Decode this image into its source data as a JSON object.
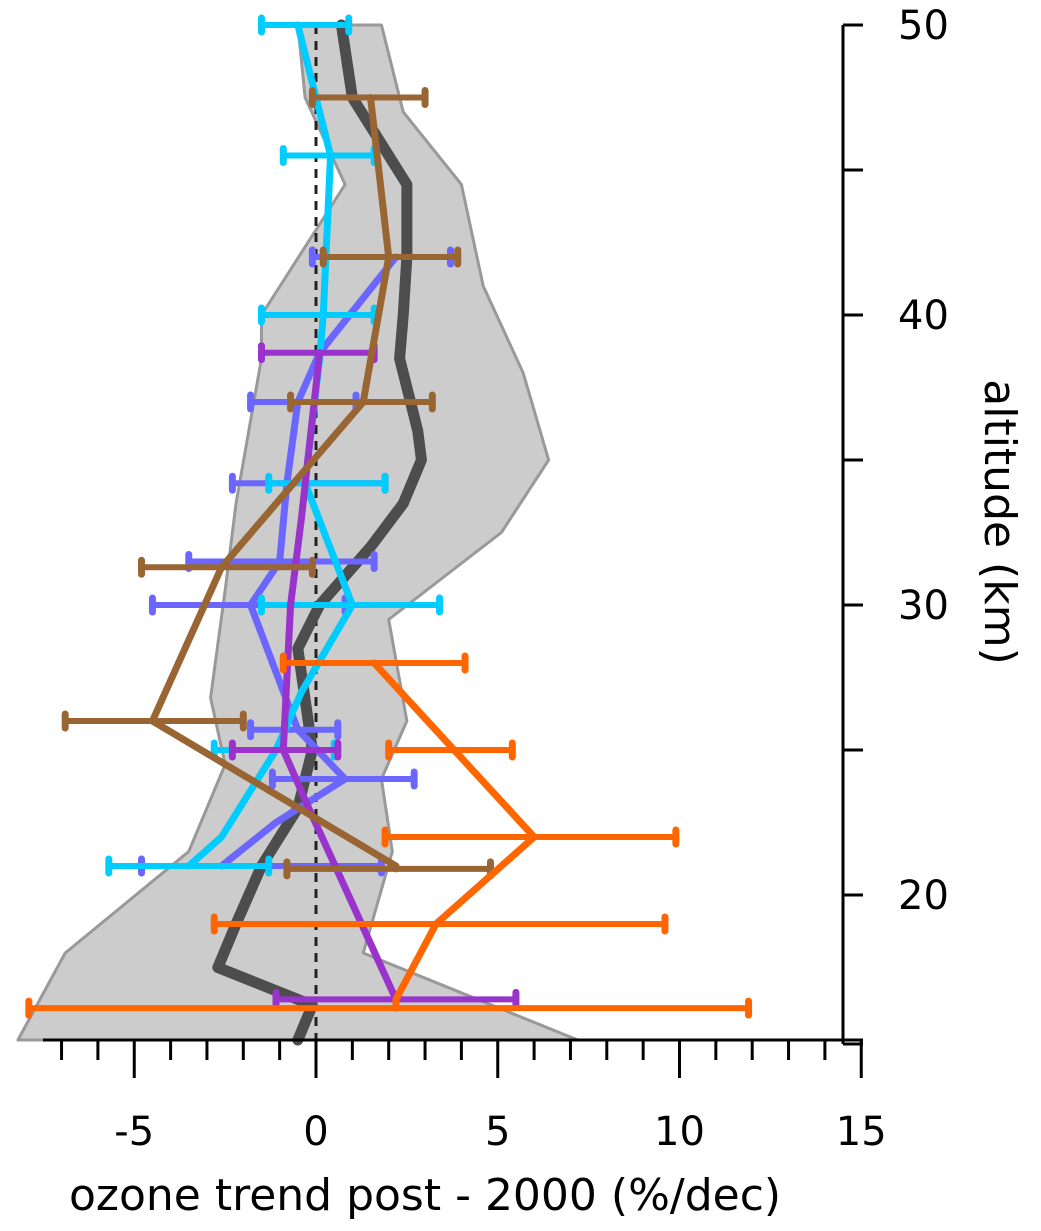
{
  "chart_data": {
    "type": "line",
    "xlabel": "ozone trend post - 2000 (%/dec)",
    "ylabel": "altitude (km)",
    "xlim": [
      -7.5,
      15
    ],
    "ylim": [
      15,
      50
    ],
    "x_ticks": [
      {
        "value": -5,
        "label": "-5"
      },
      {
        "value": 0,
        "label": "0"
      },
      {
        "value": 5,
        "label": "5"
      },
      {
        "value": 10,
        "label": "10"
      },
      {
        "value": 15,
        "label": "15"
      }
    ],
    "x_minor_step": 1,
    "y_ticks": [
      {
        "value": 20,
        "label": "20"
      },
      {
        "value": 30,
        "label": "30"
      },
      {
        "value": 40,
        "label": "40"
      },
      {
        "value": 50,
        "label": "50"
      }
    ],
    "y_minor_step": 5,
    "zero_line": {
      "x": 0,
      "style": "dashed"
    },
    "band": {
      "color": "#cccccc",
      "edge_color": "#999999",
      "left": [
        [
          -0.5,
          50
        ],
        [
          -0.3,
          47.5
        ],
        [
          0.8,
          44.5
        ],
        [
          -1.5,
          40
        ],
        [
          -1.5,
          38.5
        ],
        [
          -2.2,
          33.5
        ],
        [
          -2.5,
          30.5
        ],
        [
          -2.9,
          26.8
        ],
        [
          -2.5,
          24.5
        ],
        [
          -3.5,
          21.5
        ],
        [
          -6.9,
          18
        ],
        [
          -8.2,
          15
        ]
      ],
      "right": [
        [
          1.8,
          50
        ],
        [
          2.4,
          47
        ],
        [
          4.0,
          44.5
        ],
        [
          4.6,
          41
        ],
        [
          5.7,
          38
        ],
        [
          6.4,
          35
        ],
        [
          5.1,
          32.5
        ],
        [
          2.0,
          29.5
        ],
        [
          2.5,
          26
        ],
        [
          1.8,
          24
        ],
        [
          2.1,
          21.5
        ],
        [
          1.3,
          18
        ],
        [
          7.2,
          15
        ]
      ]
    },
    "series": [
      {
        "color": "#4d4d4d",
        "points": [
          [
            0.7,
            50
          ],
          [
            1.0,
            47.5
          ],
          [
            2.5,
            44.5
          ],
          [
            2.5,
            42
          ],
          [
            2.4,
            40
          ],
          [
            2.3,
            38.5
          ],
          [
            2.8,
            36
          ],
          [
            2.9,
            35
          ],
          [
            2.4,
            33.5
          ],
          [
            1.5,
            32
          ],
          [
            0.1,
            30
          ],
          [
            -0.5,
            28.5
          ],
          [
            -0.1,
            25
          ],
          [
            -0.5,
            23
          ],
          [
            -1.5,
            21
          ],
          [
            -2.2,
            19
          ],
          [
            -2.7,
            17.5
          ],
          [
            -0.9,
            16.6
          ],
          [
            -0.1,
            16.2
          ],
          [
            -0.5,
            15
          ]
        ],
        "errors": []
      },
      {
        "color": "#6b66ff",
        "points": [
          [
            2.2,
            42
          ],
          [
            0.1,
            38.7
          ],
          [
            -0.5,
            37
          ],
          [
            -0.8,
            34.2
          ],
          [
            -1.0,
            31.5
          ],
          [
            -1.8,
            30
          ],
          [
            -0.5,
            25.7
          ],
          [
            0.8,
            24
          ],
          [
            -1.1,
            22.5
          ],
          [
            -2.6,
            21
          ]
        ],
        "errors": [
          [
            42,
            -0.1,
            3.7
          ],
          [
            37,
            -1.8,
            1.1
          ],
          [
            34.2,
            -2.3,
            1.9
          ],
          [
            31.5,
            -3.5,
            1.6
          ],
          [
            30,
            -4.5,
            0.8
          ],
          [
            25.7,
            -1.8,
            0.6
          ],
          [
            24,
            -1.2,
            2.7
          ],
          [
            21,
            -4.8,
            1.8
          ]
        ]
      },
      {
        "color": "#00ccff",
        "points": [
          [
            -0.5,
            50
          ],
          [
            0.4,
            45.5
          ],
          [
            0.2,
            40
          ],
          [
            0.1,
            38.5
          ],
          [
            -0.3,
            34.2
          ],
          [
            1.0,
            30
          ],
          [
            -0.4,
            27
          ],
          [
            -1.1,
            25
          ],
          [
            -2.6,
            22
          ],
          [
            -3.5,
            21
          ]
        ],
        "errors": [
          [
            50,
            -1.5,
            0.9
          ],
          [
            45.5,
            -0.9,
            1.6
          ],
          [
            40,
            -1.5,
            1.6
          ],
          [
            34.2,
            -1.3,
            1.9
          ],
          [
            30,
            -1.5,
            3.4
          ],
          [
            25,
            -2.8,
            0.5
          ],
          [
            21,
            -5.7,
            -1.3
          ]
        ]
      },
      {
        "color": "#9933cc",
        "points": [
          [
            0.1,
            38.7
          ],
          [
            -0.4,
            33
          ],
          [
            -0.7,
            30
          ],
          [
            -0.9,
            25
          ],
          [
            -0.2,
            23
          ],
          [
            2.2,
            16.4
          ]
        ],
        "errors": [
          [
            38.7,
            -1.5,
            1.6
          ],
          [
            25,
            -2.3,
            0.6
          ],
          [
            16.4,
            -1.1,
            5.5
          ]
        ]
      },
      {
        "color": "#996633",
        "points": [
          [
            1.5,
            47.5
          ],
          [
            2.0,
            42
          ],
          [
            1.3,
            37
          ],
          [
            -2.6,
            31.3
          ],
          [
            -4.5,
            26
          ],
          [
            2.2,
            21
          ],
          [
            2.2,
            20.9
          ]
        ],
        "errors": [
          [
            47.5,
            -0.1,
            3.0
          ],
          [
            42,
            0.2,
            3.9
          ],
          [
            37,
            -0.7,
            3.2
          ],
          [
            31.3,
            -4.8,
            -0.1
          ],
          [
            26,
            -6.9,
            -2.0
          ],
          [
            20.9,
            -0.8,
            4.8
          ]
        ]
      },
      {
        "color": "#ff6600",
        "points": [
          [
            1.6,
            28
          ],
          [
            3.8,
            25
          ],
          [
            6.0,
            22
          ],
          [
            3.3,
            19
          ],
          [
            2.2,
            16.4
          ],
          [
            2.2,
            16.1
          ]
        ],
        "errors": [
          [
            28,
            -0.9,
            4.1
          ],
          [
            25,
            2.0,
            5.4
          ],
          [
            22,
            1.9,
            9.9
          ],
          [
            19,
            -2.8,
            9.6
          ],
          [
            16.1,
            -7.9,
            11.9
          ]
        ]
      }
    ]
  }
}
